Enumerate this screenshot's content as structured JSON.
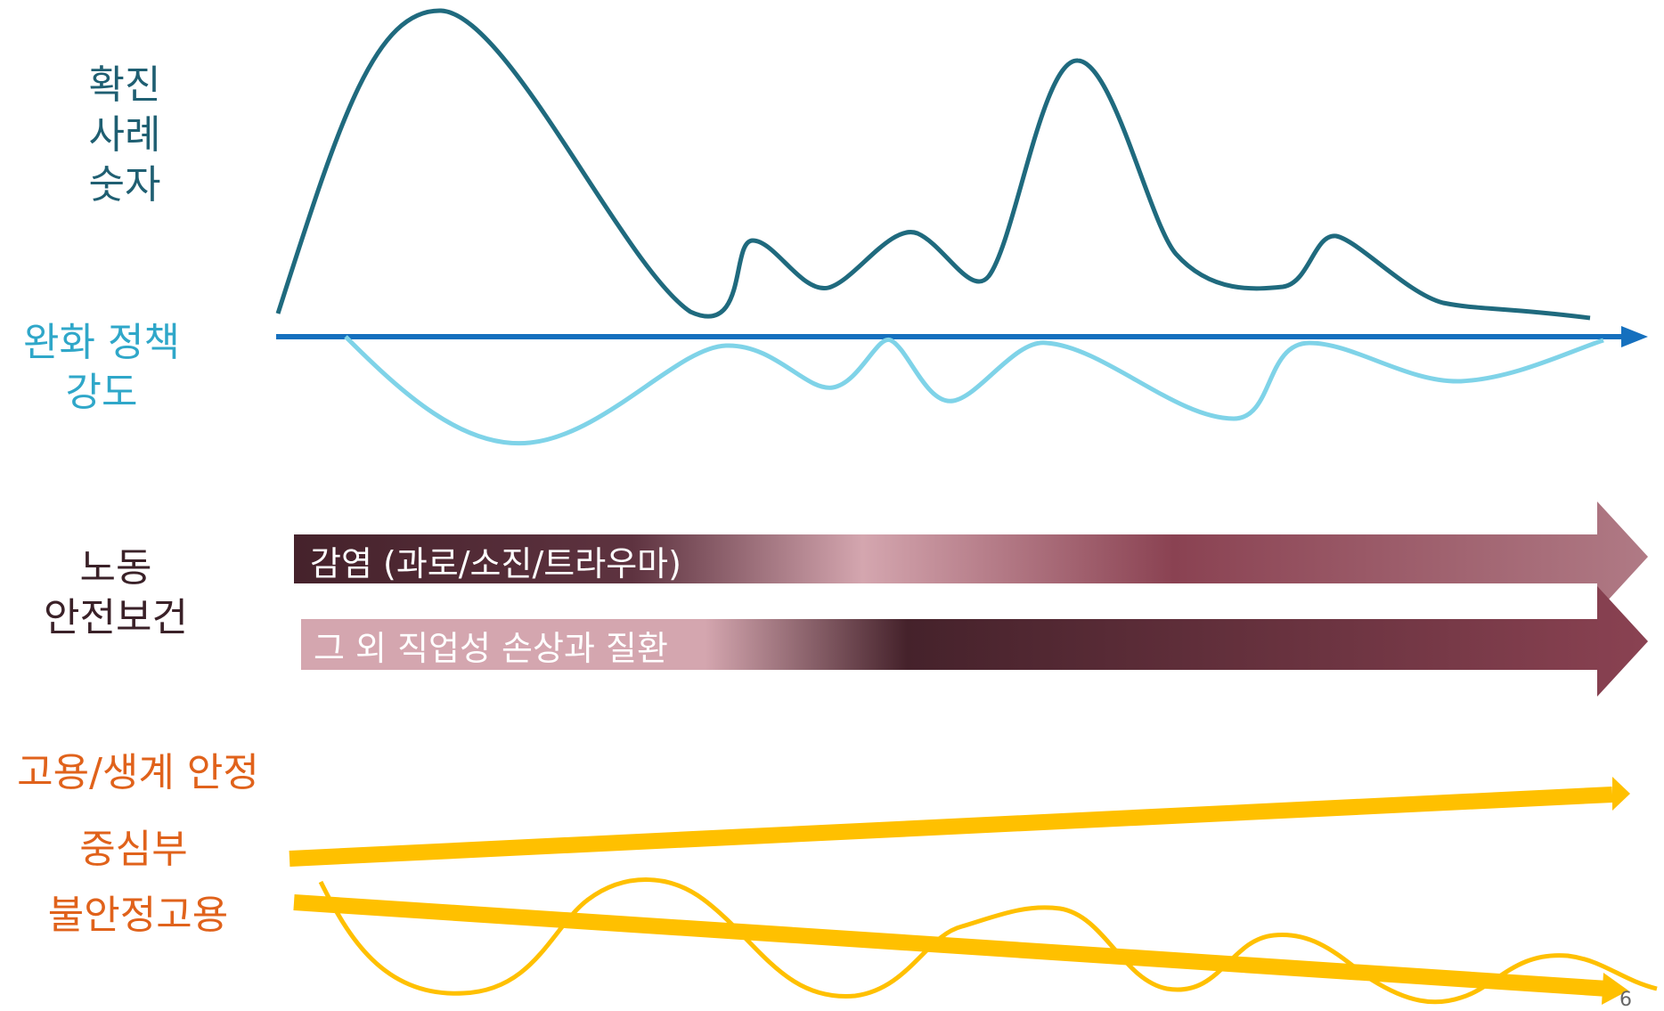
{
  "labels": {
    "cases_line1": "확진",
    "cases_line2": "사례",
    "cases_line3": "숫자",
    "policy_line1": "완화 정책",
    "policy_line2": "강도",
    "safety_line1": "노동",
    "safety_line2": "안전보건",
    "employment_title": "고용/생계 안정",
    "core": "중심부",
    "precarious": "불안정고용"
  },
  "arrows": {
    "infection": "감염 (과로/소진/트라우마)",
    "other": "그 외 직업성 손상과 질환"
  },
  "page_number": "6",
  "colors": {
    "cases": "#1f6a7e",
    "policy": "#7fd3e8",
    "axis": "#1570be",
    "arrow_dark": "#4a2530",
    "arrow_mid": "#8a4252",
    "arrow_light": "#d4a6af",
    "employment": "#ffc000",
    "employment_label": "#e0621b"
  }
}
